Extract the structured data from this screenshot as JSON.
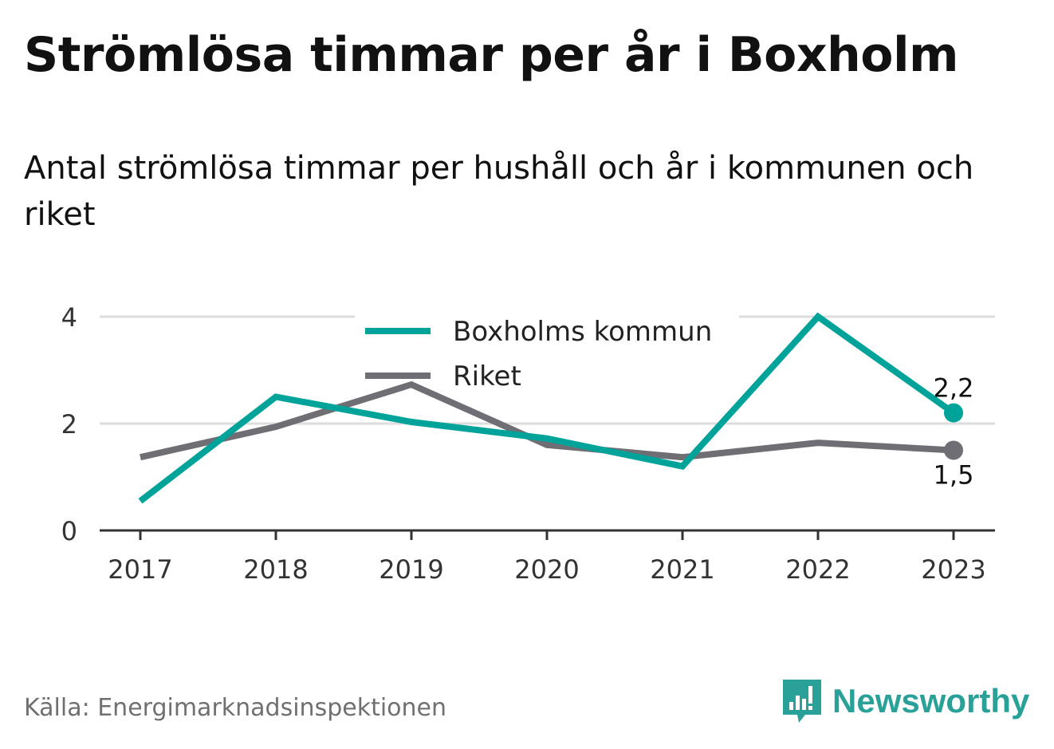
{
  "title": "Strömlösa timmar per år i Boxholm",
  "subtitle": "Antal strömlösa timmar per hushåll och år i kommunen och riket",
  "source": "Källa: Energimarknadsinspektionen",
  "brand": "Newsworthy",
  "chart_data": {
    "type": "line",
    "x": [
      "2017",
      "2018",
      "2019",
      "2020",
      "2021",
      "2022",
      "2023"
    ],
    "ylim": [
      0,
      4
    ],
    "yticks": [
      "0",
      "2",
      "4"
    ],
    "grid": true,
    "legend_position": "top-center",
    "series": [
      {
        "name": "Boxholms kommun",
        "color": "#00a39a",
        "values": [
          0.55,
          2.5,
          2.03,
          1.72,
          1.2,
          4.0,
          2.2
        ],
        "end_label": "2,2"
      },
      {
        "name": "Riket",
        "color": "#6f6e75",
        "values": [
          1.37,
          1.94,
          2.73,
          1.6,
          1.37,
          1.64,
          1.5
        ],
        "end_label": "1,5"
      }
    ]
  }
}
